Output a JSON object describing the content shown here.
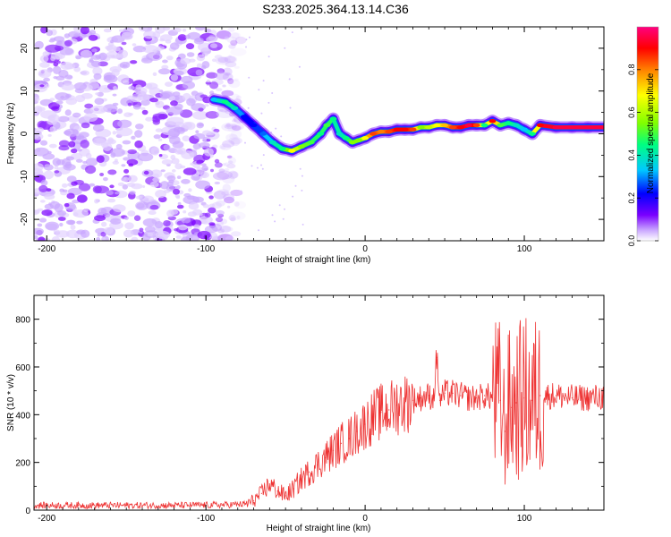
{
  "title": "S233.2025.364.13.14.C36",
  "chart_data": [
    {
      "type": "heatmap",
      "xlabel": "Height of straight line (km)",
      "ylabel": "Frequency (Hz)",
      "xlim": [
        -208,
        150
      ],
      "ylim": [
        -25,
        25
      ],
      "x_ticks": [
        -200,
        -100,
        0,
        100
      ],
      "y_ticks": [
        -20,
        -10,
        0,
        10,
        20
      ],
      "colorbar": {
        "label": "Normalized spectral amplitude",
        "range": [
          0.0,
          1.0
        ],
        "ticks": [
          0.0,
          0.2,
          0.4,
          0.6,
          0.8
        ],
        "stops": [
          "#ffffff",
          "#b37fff",
          "#7a00ff",
          "#0000ff",
          "#00c8ff",
          "#00ff80",
          "#80ff00",
          "#ffff00",
          "#ff8000",
          "#ff0000",
          "#ff0080"
        ]
      },
      "noise_region_x": [
        -208,
        -78
      ],
      "ridge": {
        "x": [
          -95,
          -88,
          -82,
          -76,
          -70,
          -64,
          -58,
          -52,
          -46,
          -40,
          -34,
          -28,
          -24,
          -20,
          -16,
          -12,
          -8,
          -4,
          0,
          5,
          10,
          15,
          20,
          25,
          30,
          35,
          40,
          45,
          50,
          55,
          60,
          65,
          70,
          75,
          80,
          85,
          90,
          95,
          100,
          105,
          110,
          120,
          130,
          140,
          150
        ],
        "y": [
          8,
          7.5,
          6,
          4,
          2,
          0,
          -2,
          -3.5,
          -4,
          -3,
          -2,
          0,
          2,
          3.5,
          0,
          -1,
          -2,
          -1.5,
          -1,
          0,
          0.5,
          0.5,
          1,
          1,
          1,
          1.5,
          1.5,
          2,
          2,
          1.5,
          1.5,
          2,
          2,
          2,
          3,
          2,
          2.5,
          2,
          1,
          0,
          2,
          1.5,
          1.5,
          1.5,
          1.5
        ],
        "amplitude": [
          0.4,
          0.5,
          0.45,
          0.3,
          0.3,
          0.35,
          0.45,
          0.5,
          0.7,
          0.6,
          0.55,
          0.5,
          0.55,
          0.5,
          0.45,
          0.5,
          0.6,
          0.6,
          0.7,
          0.85,
          0.8,
          0.85,
          0.9,
          0.9,
          0.85,
          0.6,
          0.65,
          0.7,
          0.75,
          0.85,
          0.9,
          0.95,
          0.85,
          0.5,
          0.9,
          0.55,
          0.5,
          0.45,
          0.4,
          0.5,
          0.9,
          0.95,
          0.95,
          0.95,
          0.95
        ]
      }
    },
    {
      "type": "line",
      "xlabel": "Height of straight line (km)",
      "ylabel": "SNR (10 * v/v)",
      "xlim": [
        -208,
        150
      ],
      "ylim": [
        0,
        900
      ],
      "x_ticks": [
        -200,
        -100,
        0,
        100
      ],
      "y_ticks": [
        0,
        200,
        400,
        600,
        800
      ],
      "series": [
        {
          "name": "SNR",
          "color": "#ee3333",
          "x": [
            -208,
            -180,
            -150,
            -120,
            -90,
            -75,
            -70,
            -65,
            -60,
            -55,
            -50,
            -45,
            -40,
            -35,
            -30,
            -25,
            -20,
            -15,
            -10,
            -5,
            0,
            5,
            10,
            15,
            20,
            25,
            30,
            35,
            40,
            43,
            45,
            47,
            50,
            55,
            60,
            65,
            70,
            75,
            80,
            85,
            88,
            90,
            92,
            95,
            100,
            105,
            110,
            120,
            130,
            140,
            150
          ],
          "y": [
            20,
            20,
            20,
            20,
            22,
            25,
            40,
            70,
            110,
            80,
            60,
            90,
            130,
            160,
            190,
            220,
            250,
            280,
            300,
            330,
            360,
            390,
            410,
            420,
            440,
            450,
            460,
            470,
            480,
            470,
            640,
            460,
            490,
            490,
            480,
            470,
            470,
            480,
            470,
            460,
            330,
            440,
            430,
            450,
            470,
            460,
            480,
            480,
            470,
            470,
            475
          ]
        }
      ]
    }
  ]
}
